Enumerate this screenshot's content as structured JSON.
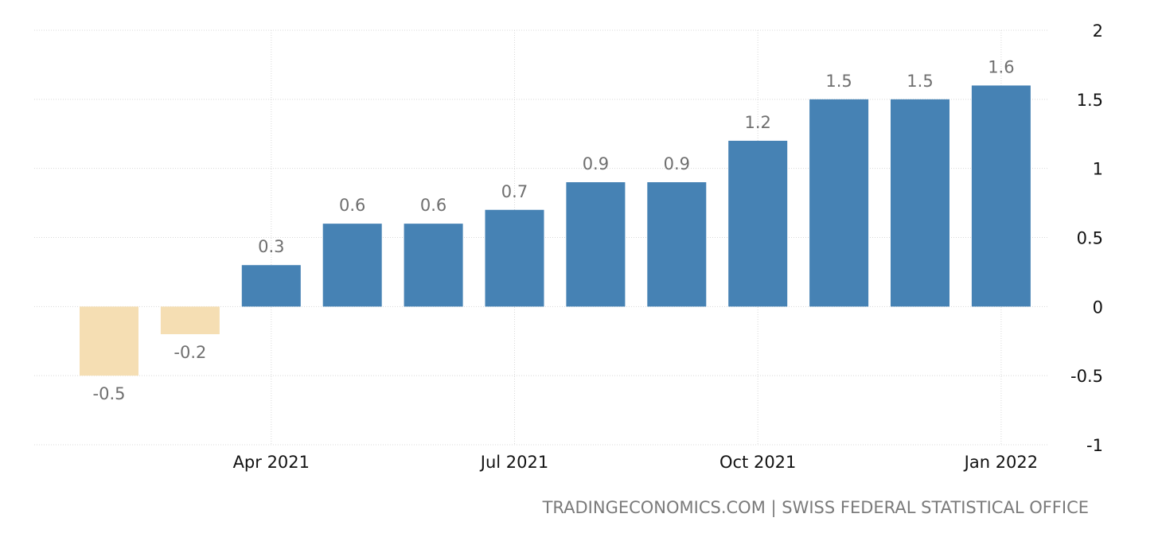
{
  "chart_data": {
    "type": "bar",
    "categories": [
      "Feb 2021",
      "Mar 2021",
      "Apr 2021",
      "May 2021",
      "Jun 2021",
      "Jul 2021",
      "Aug 2021",
      "Sep 2021",
      "Oct 2021",
      "Nov 2021",
      "Dec 2021",
      "Jan 2022"
    ],
    "values": [
      -0.5,
      -0.2,
      0.3,
      0.6,
      0.6,
      0.7,
      0.9,
      0.9,
      1.2,
      1.5,
      1.5,
      1.6
    ],
    "value_labels": [
      "-0.5",
      "-0.2",
      "0.3",
      "0.6",
      "0.6",
      "0.7",
      "0.9",
      "0.9",
      "1.2",
      "1.5",
      "1.5",
      "1.6"
    ],
    "x_tick_labels": [
      {
        "category": "Apr 2021",
        "label": "Apr 2021"
      },
      {
        "category": "Jul 2021",
        "label": "Jul 2021"
      },
      {
        "category": "Oct 2021",
        "label": "Oct 2021"
      },
      {
        "category": "Jan 2022",
        "label": "Jan 2022"
      }
    ],
    "y_ticks": [
      2,
      1.5,
      1,
      0.5,
      0,
      -0.5,
      -1
    ],
    "y_tick_labels": [
      "2",
      "1.5",
      "1",
      "0.5",
      "0",
      "-0.5",
      "-1"
    ],
    "ylim": [
      -1,
      2
    ],
    "y_axis_side": "right",
    "grid": true,
    "colors": {
      "positive": "#4682b4",
      "negative": "#f5deb3"
    },
    "title": "",
    "xlabel": "",
    "ylabel": ""
  },
  "footer": {
    "source": "TRADINGECONOMICS.COM | SWISS FEDERAL STATISTICAL OFFICE"
  }
}
